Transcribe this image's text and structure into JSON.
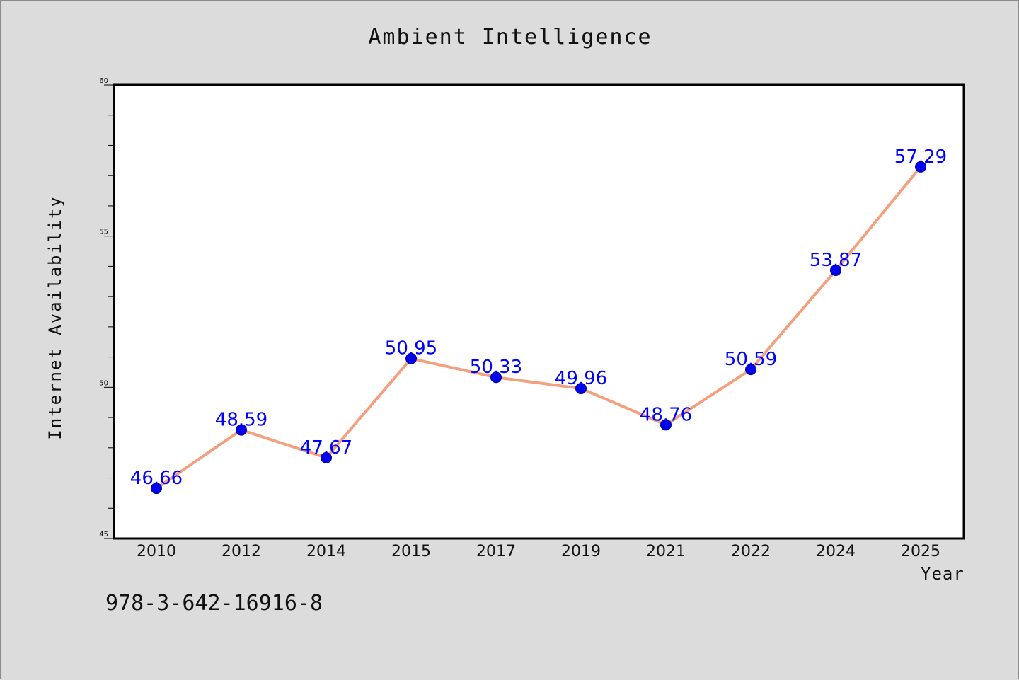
{
  "chart_data": {
    "type": "line",
    "title": "Ambient Intelligence",
    "xlabel": "Year",
    "ylabel": "Internet Availability",
    "ylim": [
      45,
      60
    ],
    "yticks": [
      "45",
      "50",
      "55",
      "60"
    ],
    "categories": [
      "2010",
      "2012",
      "2014",
      "2015",
      "2017",
      "2019",
      "2021",
      "2022",
      "2024",
      "2025"
    ],
    "series": [
      {
        "values": [
          46.66,
          48.59,
          47.67,
          50.95,
          50.33,
          49.96,
          48.76,
          50.59,
          53.87,
          57.29
        ],
        "labels": [
          "46.66",
          "48.59",
          "47.67",
          "50.95",
          "50.33",
          "49.96",
          "48.76",
          "50.59",
          "53.87",
          "57.29"
        ],
        "line_color": "#f4a07e",
        "marker_color": "#0000ee",
        "label_color": "#0000ff"
      }
    ],
    "grid": false,
    "legend": "none"
  },
  "footer": {
    "isbn": "978-3-642-16916-8"
  }
}
